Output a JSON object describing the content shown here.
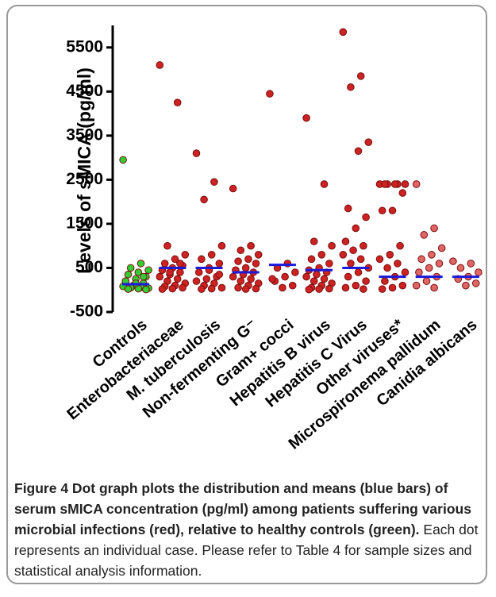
{
  "chart_data": {
    "type": "dot",
    "y_label": "Levels of sMICA (pg/ml)",
    "categories": [
      "Controls",
      "Enterobacteriaceae",
      "M. tuberculosis",
      "Non-fermenting G⁻",
      "Gram+ cocci",
      "Hepatitis B virus",
      "Hepatitis C Virus",
      "Other viruses*",
      "Microspironema pallidum",
      "Canidia albicans"
    ],
    "colors": [
      "#33cc33",
      "#cc2222",
      "#cc2222",
      "#cc2222",
      "#cc2222",
      "#cc2222",
      "#cc2222",
      "#cc2222",
      "#e06666",
      "#e06666"
    ],
    "points": [
      [
        2950,
        600,
        500,
        450,
        400,
        350,
        300,
        250,
        200,
        150,
        100,
        80,
        60,
        50,
        40,
        30,
        20,
        10,
        150,
        200,
        300
      ],
      [
        5100,
        4250,
        1000,
        800,
        700,
        600,
        550,
        500,
        450,
        400,
        350,
        300,
        250,
        200,
        150,
        100,
        80,
        50,
        30,
        20,
        600,
        400
      ],
      [
        3100,
        2450,
        2050,
        1000,
        800,
        700,
        600,
        500,
        400,
        300,
        250,
        200,
        150,
        100,
        50,
        30,
        20,
        350,
        450
      ],
      [
        2300,
        1000,
        900,
        800,
        700,
        650,
        600,
        500,
        450,
        400,
        350,
        300,
        250,
        200,
        150,
        100,
        50,
        30,
        20
      ],
      [
        4450,
        600,
        500,
        400,
        300,
        200,
        100,
        50,
        250
      ],
      [
        3900,
        2400,
        1100,
        1000,
        800,
        700,
        600,
        500,
        450,
        400,
        350,
        300,
        250,
        200,
        150,
        100,
        50,
        30,
        20,
        10
      ],
      [
        5850,
        4850,
        4600,
        3350,
        3150,
        1850,
        1650,
        1400,
        1100,
        1000,
        900,
        800,
        700,
        600,
        500,
        400,
        300,
        200,
        100,
        50,
        20
      ],
      [
        2400,
        2400,
        2400,
        2400,
        2400,
        2400,
        2200,
        1800,
        1800,
        1000,
        800,
        700,
        600,
        500,
        400,
        300,
        200,
        100,
        50,
        20
      ],
      [
        2400,
        1400,
        1250,
        950,
        800,
        700,
        600,
        500,
        400,
        300,
        200,
        100,
        50
      ],
      [
        650,
        600,
        500,
        400,
        300,
        250,
        150,
        100
      ]
    ],
    "means": [
      130,
      500,
      500,
      400,
      570,
      450,
      500,
      300,
      300,
      300
    ],
    "mean_color": "#1a1adb",
    "ylim": [
      -500,
      6000
    ],
    "yticks": [
      -500,
      500,
      1500,
      2500,
      3500,
      4500,
      5500
    ]
  },
  "caption": {
    "bold": "Figure 4 Dot graph plots the distribution and means (blue bars) of serum sMICA concentration (pg/ml) among patients suffering various microbial infections (red), relative to healthy controls (green).",
    "text": "Each dot represents an individual case. Please refer to Table 4 for sample sizes and statistical analysis information."
  }
}
